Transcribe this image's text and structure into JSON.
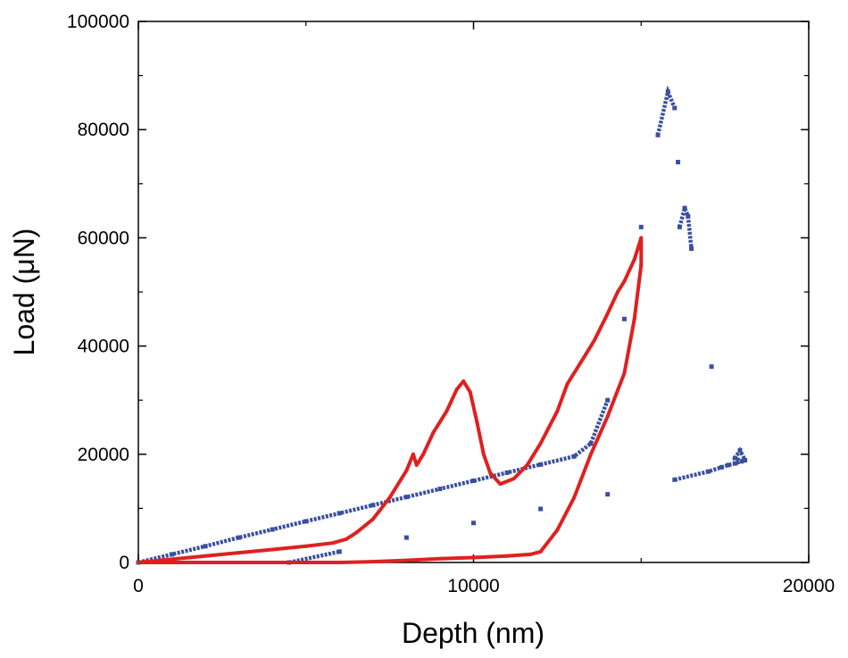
{
  "chart_data": {
    "type": "scatter",
    "title": "",
    "xlabel": "Depth (nm)",
    "ylabel": "Load (μN)",
    "xlim": [
      0,
      20000
    ],
    "ylim": [
      0,
      100000
    ],
    "x_ticks": [
      0,
      10000,
      20000
    ],
    "x_tick_labels": [
      "0",
      "10000",
      "20000"
    ],
    "y_ticks": [
      0,
      20000,
      40000,
      60000,
      80000,
      100000
    ],
    "y_tick_labels": [
      "0",
      "20000",
      "40000",
      "60000",
      "80000",
      "100000"
    ],
    "grid": false,
    "legend": false,
    "series": [
      {
        "color": "#3a4fa0",
        "style": "dots",
        "points": [
          [
            0,
            0
          ],
          [
            1000,
            1500
          ],
          [
            2000,
            3000
          ],
          [
            3000,
            4600
          ],
          [
            4000,
            6100
          ],
          [
            5000,
            7600
          ],
          [
            6000,
            9100
          ],
          [
            7000,
            10600
          ],
          [
            8000,
            12100
          ],
          [
            9000,
            13600
          ],
          [
            10000,
            15100
          ],
          [
            11000,
            16600
          ],
          [
            12000,
            18100
          ],
          [
            13000,
            19600
          ],
          [
            13500,
            22000
          ],
          [
            14000,
            30000
          ],
          [
            14500,
            45000
          ],
          [
            15000,
            62000
          ],
          [
            15500,
            79000
          ],
          [
            15800,
            87000
          ],
          [
            16000,
            84000
          ],
          [
            16100,
            74000
          ],
          [
            16150,
            62000
          ],
          [
            16300,
            65500
          ],
          [
            16400,
            64000
          ],
          [
            16500,
            58000
          ],
          [
            4500,
            0
          ],
          [
            6000,
            2000
          ],
          [
            8000,
            4600
          ],
          [
            10000,
            7300
          ],
          [
            12000,
            9900
          ],
          [
            14000,
            12600
          ],
          [
            16000,
            15300
          ],
          [
            17000,
            16800
          ],
          [
            17400,
            17600
          ],
          [
            17600,
            18000
          ],
          [
            17800,
            18300
          ],
          [
            18000,
            18700
          ],
          [
            17800,
            19300
          ],
          [
            17950,
            20700
          ],
          [
            18100,
            18900
          ],
          [
            17100,
            36200
          ]
        ]
      },
      {
        "color": "#e02020",
        "style": "line",
        "points": [
          [
            0,
            0
          ],
          [
            1000,
            600
          ],
          [
            2000,
            1200
          ],
          [
            3000,
            1800
          ],
          [
            4000,
            2400
          ],
          [
            5000,
            3000
          ],
          [
            5800,
            3600
          ],
          [
            6200,
            4300
          ],
          [
            6500,
            5500
          ],
          [
            7000,
            8000
          ],
          [
            7500,
            12000
          ],
          [
            8000,
            17000
          ],
          [
            8200,
            20000
          ],
          [
            8300,
            18000
          ],
          [
            8500,
            20000
          ],
          [
            8800,
            24000
          ],
          [
            9200,
            28000
          ],
          [
            9500,
            32000
          ],
          [
            9700,
            33500
          ],
          [
            9900,
            31500
          ],
          [
            10100,
            26000
          ],
          [
            10300,
            20000
          ],
          [
            10500,
            16500
          ],
          [
            10800,
            14500
          ],
          [
            11200,
            15500
          ],
          [
            11600,
            18000
          ],
          [
            12000,
            22000
          ],
          [
            12500,
            28000
          ],
          [
            12800,
            33000
          ],
          [
            13200,
            37000
          ],
          [
            13600,
            41000
          ],
          [
            14000,
            46000
          ],
          [
            14300,
            50000
          ],
          [
            14500,
            52000
          ],
          [
            14800,
            56000
          ],
          [
            15000,
            60000
          ],
          [
            15000,
            55000
          ],
          [
            14800,
            45000
          ],
          [
            14500,
            35000
          ],
          [
            14000,
            27000
          ],
          [
            13500,
            20000
          ],
          [
            13000,
            12000
          ],
          [
            12500,
            6000
          ],
          [
            12000,
            2000
          ],
          [
            11700,
            1500
          ],
          [
            11000,
            1200
          ],
          [
            10000,
            900
          ],
          [
            9000,
            700
          ],
          [
            8000,
            400
          ],
          [
            7000,
            150
          ],
          [
            6000,
            0
          ],
          [
            5000,
            0
          ],
          [
            4000,
            0
          ],
          [
            3000,
            0
          ],
          [
            2000,
            0
          ],
          [
            1000,
            0
          ],
          [
            0,
            0
          ]
        ]
      }
    ]
  }
}
